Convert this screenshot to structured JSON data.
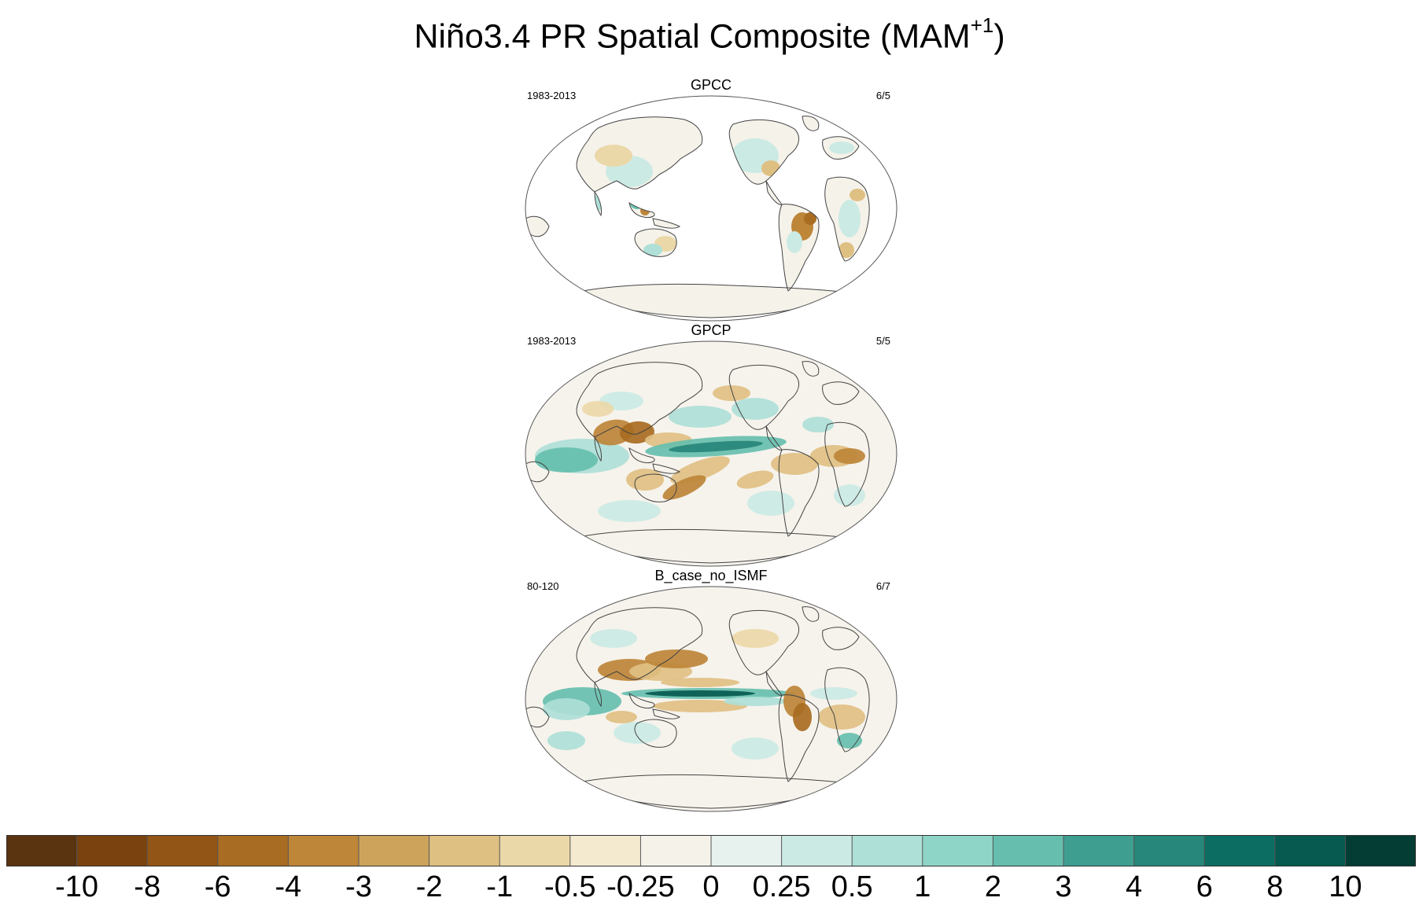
{
  "title": {
    "main": "Niño3.4 PR Spatial Composite (MAM",
    "superscript": "+1",
    "close": ")"
  },
  "panels": [
    {
      "label": "GPCC",
      "period": "1983-2013",
      "count": "6/5",
      "kind": "land"
    },
    {
      "label": "GPCP",
      "period": "1983-2013",
      "count": "5/5",
      "kind": "full"
    },
    {
      "label": "B_case_no_ISMF",
      "period": "80-120",
      "count": "6/7",
      "kind": "model"
    }
  ],
  "colorbar": {
    "colors": [
      "#5a3310",
      "#7a420f",
      "#935515",
      "#a86c22",
      "#bd8638",
      "#cda35c",
      "#dfc083",
      "#ebd8a8",
      "#f3ead0",
      "#f5f2ea",
      "#e7f2ef",
      "#cbeae4",
      "#aee0d7",
      "#8ed4c7",
      "#66bfae",
      "#3e9f90",
      "#26877a",
      "#0c6e62",
      "#065a4f",
      "#033d34"
    ],
    "labels": [
      "-10",
      "-8",
      "-6",
      "-4",
      "-3",
      "-2",
      "-1",
      "-0.5",
      "-0.25",
      "0",
      "0.25",
      "0.5",
      "1",
      "2",
      "3",
      "4",
      "6",
      "8",
      "10"
    ]
  }
}
